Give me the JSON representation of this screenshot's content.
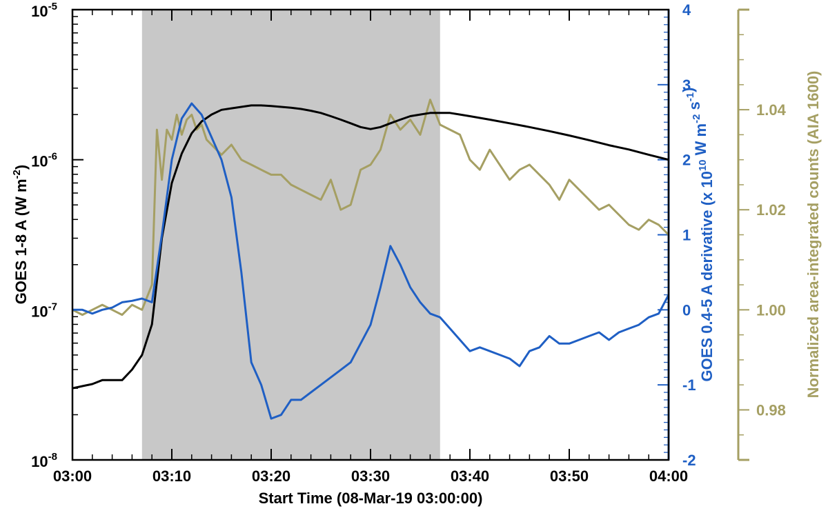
{
  "chart_data": {
    "type": "line",
    "xlabel": "Start Time (08-Mar-19 03:00:00)",
    "x_ticks": [
      "03:00",
      "03:10",
      "03:20",
      "03:30",
      "03:40",
      "03:50",
      "04:00"
    ],
    "xlim": [
      0,
      60
    ],
    "shaded_interval": [
      7,
      37
    ],
    "axes": {
      "left": {
        "label_main": "GOES 1-8 A (W m",
        "label_sup": "-2",
        "label_close": ")",
        "scale": "log",
        "ylim": [
          1e-08,
          1e-05
        ],
        "ticks": [
          {
            "value": 1e-08,
            "base": "10",
            "exp": "-8"
          },
          {
            "value": 1e-07,
            "base": "10",
            "exp": "-7"
          },
          {
            "value": 1e-06,
            "base": "10",
            "exp": "-6"
          },
          {
            "value": 1e-05,
            "base": "10",
            "exp": "-5"
          }
        ],
        "color": "#000000"
      },
      "right1": {
        "label_parts": [
          {
            "t": "GOES 0.4-5 A derivative (x 10",
            "sup": false
          },
          {
            "t": "10",
            "sup": true
          },
          {
            "t": " W m",
            "sup": false
          },
          {
            "t": "-2",
            "sup": true
          },
          {
            "t": " s",
            "sup": false
          },
          {
            "t": "-1",
            "sup": true
          },
          {
            "t": ")",
            "sup": false
          }
        ],
        "ylim": [
          -2,
          4
        ],
        "ticks": [
          "-2",
          "-1",
          "0",
          "1",
          "2",
          "3",
          "4"
        ],
        "color": "#1f5fc4"
      },
      "right2": {
        "label": "Normalized area-integrated counts (AIA 1600)",
        "ylim": [
          0.97,
          1.06
        ],
        "ticks": [
          "0.98",
          "1.00",
          "1.02",
          "1.04"
        ],
        "color": "#a59f63"
      }
    },
    "series": [
      {
        "axis": "left",
        "color": "#000000",
        "x": [
          0,
          1,
          2,
          3,
          4,
          5,
          6,
          7,
          8,
          9,
          10,
          11,
          12,
          13,
          14,
          15,
          16,
          17,
          18,
          19,
          20,
          21,
          22,
          23,
          24,
          25,
          26,
          27,
          28,
          29,
          30,
          31,
          32,
          33,
          34,
          35,
          36,
          37,
          38,
          39,
          40,
          42,
          44,
          46,
          48,
          50,
          52,
          54,
          56,
          58,
          60
        ],
        "y": [
          3e-08,
          3.1e-08,
          3.2e-08,
          3.4e-08,
          3.4e-08,
          3.4e-08,
          4e-08,
          5e-08,
          8e-08,
          3e-07,
          7e-07,
          1.1e-06,
          1.5e-06,
          1.8e-06,
          2e-06,
          2.15e-06,
          2.2e-06,
          2.25e-06,
          2.3e-06,
          2.3e-06,
          2.28e-06,
          2.25e-06,
          2.22e-06,
          2.18e-06,
          2.12e-06,
          2.05e-06,
          1.95e-06,
          1.85e-06,
          1.75e-06,
          1.65e-06,
          1.6e-06,
          1.65e-06,
          1.75e-06,
          1.85e-06,
          1.95e-06,
          2e-06,
          2.05e-06,
          2.05e-06,
          2.05e-06,
          2e-06,
          1.95e-06,
          1.85e-06,
          1.75e-06,
          1.65e-06,
          1.55e-06,
          1.45e-06,
          1.35e-06,
          1.25e-06,
          1.17e-06,
          1.08e-06,
          1e-06
        ]
      },
      {
        "axis": "right1",
        "color": "#1f5fc4",
        "x": [
          0,
          1,
          2,
          3,
          4,
          5,
          6,
          7,
          8,
          9,
          10,
          11,
          12,
          13,
          14,
          15,
          16,
          17,
          18,
          19,
          20,
          21,
          22,
          23,
          24,
          25,
          26,
          27,
          28,
          29,
          30,
          31,
          32,
          33,
          34,
          35,
          36,
          37,
          38,
          39,
          40,
          41,
          42,
          43,
          44,
          45,
          46,
          47,
          48,
          49,
          50,
          51,
          52,
          53,
          54,
          55,
          56,
          57,
          58,
          59,
          60
        ],
        "y": [
          0.0,
          0.0,
          -0.05,
          0.0,
          0.03,
          0.1,
          0.12,
          0.15,
          0.1,
          1.0,
          2.0,
          2.55,
          2.75,
          2.6,
          2.3,
          2.0,
          1.5,
          0.5,
          -0.7,
          -1.0,
          -1.45,
          -1.4,
          -1.2,
          -1.2,
          -1.1,
          -1.0,
          -0.9,
          -0.8,
          -0.7,
          -0.45,
          -0.2,
          0.3,
          0.85,
          0.6,
          0.3,
          0.1,
          -0.05,
          -0.1,
          -0.25,
          -0.4,
          -0.55,
          -0.5,
          -0.55,
          -0.6,
          -0.65,
          -0.75,
          -0.55,
          -0.5,
          -0.35,
          -0.45,
          -0.45,
          -0.4,
          -0.35,
          -0.3,
          -0.4,
          -0.3,
          -0.25,
          -0.2,
          -0.1,
          -0.05,
          0.2
        ]
      },
      {
        "axis": "right2",
        "color": "#a59f63",
        "x": [
          0,
          1,
          2,
          3,
          4,
          5,
          6,
          7,
          8,
          8.5,
          9,
          9.5,
          10,
          10.5,
          11,
          11.5,
          12,
          12.5,
          13,
          13.5,
          14,
          14.5,
          15,
          16,
          17,
          18,
          19,
          20,
          21,
          22,
          23,
          24,
          25,
          26,
          27,
          28,
          29,
          30,
          31,
          32,
          33,
          34,
          35,
          36,
          37,
          38,
          39,
          40,
          41,
          42,
          43,
          44,
          45,
          46,
          47,
          48,
          49,
          50,
          51,
          52,
          53,
          54,
          55,
          56,
          57,
          58,
          59,
          60
        ],
        "y": [
          1.0,
          0.999,
          1.0,
          1.001,
          1.0,
          0.999,
          1.001,
          1.0,
          1.005,
          1.036,
          1.026,
          1.036,
          1.034,
          1.039,
          1.035,
          1.038,
          1.039,
          1.036,
          1.037,
          1.034,
          1.033,
          1.032,
          1.031,
          1.033,
          1.03,
          1.029,
          1.028,
          1.027,
          1.027,
          1.025,
          1.024,
          1.023,
          1.022,
          1.026,
          1.02,
          1.021,
          1.028,
          1.029,
          1.032,
          1.039,
          1.036,
          1.038,
          1.035,
          1.042,
          1.037,
          1.036,
          1.035,
          1.03,
          1.028,
          1.032,
          1.029,
          1.026,
          1.028,
          1.029,
          1.027,
          1.025,
          1.022,
          1.026,
          1.024,
          1.022,
          1.02,
          1.021,
          1.019,
          1.017,
          1.016,
          1.018,
          1.017,
          1.015
        ]
      }
    ]
  }
}
